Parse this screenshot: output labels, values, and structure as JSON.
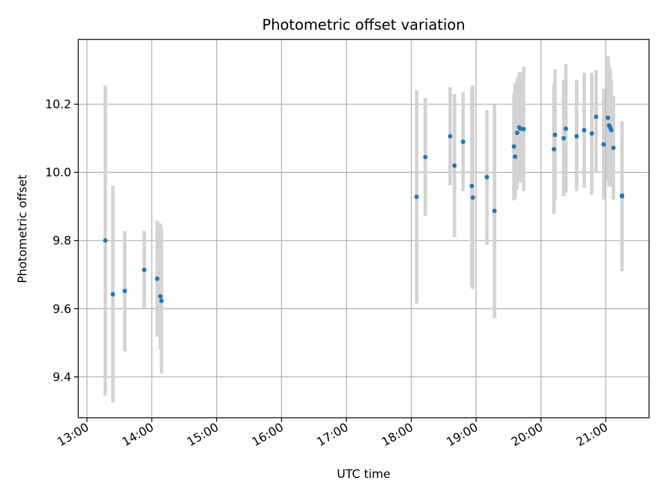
{
  "chart_data": {
    "type": "scatter",
    "title": "Photometric offset variation",
    "xlabel": "UTC time",
    "ylabel": "Photometric offset",
    "grid": true,
    "xlim": [
      "12:52",
      "21:40"
    ],
    "ylim": [
      9.28,
      10.39
    ],
    "x_ticks": [
      "13:00",
      "14:00",
      "15:00",
      "16:00",
      "17:00",
      "18:00",
      "19:00",
      "20:00",
      "21:00"
    ],
    "y_ticks": [
      9.4,
      9.6,
      9.8,
      10.0,
      10.2
    ],
    "colors": {
      "points": "#1f77b4",
      "errorbars": "#d3d3d3",
      "grid": "#b0b0b0"
    },
    "series": [
      {
        "points": [
          {
            "time": "13:17",
            "y": 9.8,
            "ylow": 9.345,
            "yhigh": 10.255
          },
          {
            "time": "13:24",
            "y": 9.642,
            "ylow": 9.325,
            "yhigh": 9.96
          },
          {
            "time": "13:35",
            "y": 9.652,
            "ylow": 9.475,
            "yhigh": 9.828
          },
          {
            "time": "13:53",
            "y": 9.714,
            "ylow": 9.6,
            "yhigh": 9.828
          },
          {
            "time": "14:05",
            "y": 9.688,
            "ylow": 9.518,
            "yhigh": 9.858
          },
          {
            "time": "14:08",
            "y": 9.636,
            "ylow": 9.48,
            "yhigh": 9.85
          },
          {
            "time": "14:09",
            "y": 9.623,
            "ylow": 9.41,
            "yhigh": 9.835
          },
          {
            "time": "18:05",
            "y": 9.928,
            "ylow": 9.615,
            "yhigh": 10.24
          },
          {
            "time": "18:13",
            "y": 10.045,
            "ylow": 9.872,
            "yhigh": 10.218
          },
          {
            "time": "18:36",
            "y": 10.106,
            "ylow": 9.962,
            "yhigh": 10.25
          },
          {
            "time": "18:40",
            "y": 10.02,
            "ylow": 9.81,
            "yhigh": 10.23
          },
          {
            "time": "18:48",
            "y": 10.09,
            "ylow": 9.945,
            "yhigh": 10.235
          },
          {
            "time": "18:56",
            "y": 9.96,
            "ylow": 9.665,
            "yhigh": 10.25
          },
          {
            "time": "18:57",
            "y": 9.926,
            "ylow": 9.658,
            "yhigh": 10.255
          },
          {
            "time": "19:10",
            "y": 9.986,
            "ylow": 9.788,
            "yhigh": 10.182
          },
          {
            "time": "19:17",
            "y": 9.887,
            "ylow": 9.572,
            "yhigh": 10.198
          },
          {
            "time": "19:35",
            "y": 10.076,
            "ylow": 9.918,
            "yhigh": 10.232
          },
          {
            "time": "19:36",
            "y": 10.046,
            "ylow": 9.922,
            "yhigh": 10.262
          },
          {
            "time": "19:38",
            "y": 10.116,
            "ylow": 9.95,
            "yhigh": 10.278
          },
          {
            "time": "19:40",
            "y": 10.132,
            "ylow": 9.972,
            "yhigh": 10.295
          },
          {
            "time": "19:41",
            "y": 10.128,
            "ylow": 9.97,
            "yhigh": 10.292
          },
          {
            "time": "19:44",
            "y": 10.127,
            "ylow": 9.945,
            "yhigh": 10.31
          },
          {
            "time": "20:12",
            "y": 10.068,
            "ylow": 9.878,
            "yhigh": 10.258
          },
          {
            "time": "20:13",
            "y": 10.11,
            "ylow": 9.918,
            "yhigh": 10.302
          },
          {
            "time": "20:21",
            "y": 10.1,
            "ylow": 9.93,
            "yhigh": 10.272
          },
          {
            "time": "20:23",
            "y": 10.128,
            "ylow": 9.94,
            "yhigh": 10.318
          },
          {
            "time": "20:33",
            "y": 10.106,
            "ylow": 9.945,
            "yhigh": 10.27
          },
          {
            "time": "20:40",
            "y": 10.124,
            "ylow": 9.955,
            "yhigh": 10.292
          },
          {
            "time": "20:47",
            "y": 10.114,
            "ylow": 9.935,
            "yhigh": 10.292
          },
          {
            "time": "20:51",
            "y": 10.163,
            "ylow": 10.0,
            "yhigh": 10.3
          },
          {
            "time": "20:58",
            "y": 10.082,
            "ylow": 9.92,
            "yhigh": 10.245
          },
          {
            "time": "21:02",
            "y": 10.16,
            "ylow": 9.975,
            "yhigh": 10.34
          },
          {
            "time": "21:03",
            "y": 10.138,
            "ylow": 9.96,
            "yhigh": 10.315
          },
          {
            "time": "21:04",
            "y": 10.132,
            "ylow": 9.958,
            "yhigh": 10.305
          },
          {
            "time": "21:05",
            "y": 10.124,
            "ylow": 9.975,
            "yhigh": 10.272
          },
          {
            "time": "21:07",
            "y": 10.072,
            "ylow": 9.92,
            "yhigh": 10.225
          },
          {
            "time": "21:15",
            "y": 9.93,
            "ylow": 9.71,
            "yhigh": 10.148
          },
          {
            "time": "21:15",
            "y": 9.932,
            "ylow": 9.715,
            "yhigh": 10.15
          }
        ]
      }
    ]
  }
}
